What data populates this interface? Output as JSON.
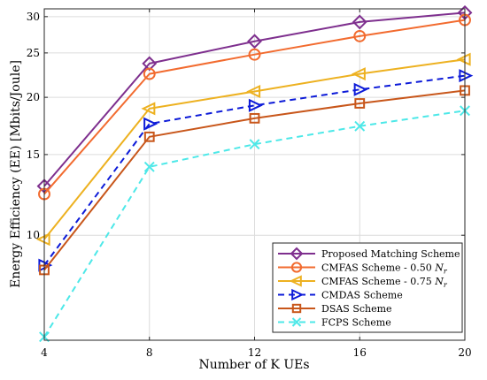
{
  "chart_data": {
    "type": "line",
    "x": [
      4,
      8,
      12,
      16,
      20
    ],
    "xlabel": "Number of K UEs",
    "ylabel": "Energy Efficiency (EE) [Mbits/Joule]",
    "xlim": [
      4,
      20
    ],
    "ylim": [
      5.9,
      31.2
    ],
    "x_ticks": [
      4,
      8,
      12,
      16,
      20
    ],
    "y_ticks": [
      10,
      15,
      20,
      25,
      30
    ],
    "grid": true,
    "legend_position": "bottom-right",
    "series": [
      {
        "name": "Proposed Matching Scheme",
        "values": [
          12.8,
          23.7,
          26.5,
          29.2,
          30.6
        ],
        "color": "#7e2f8e",
        "marker": "diamond",
        "dash": "solid"
      },
      {
        "name": "CMFAS Scheme - 0.50 N_r",
        "values": [
          12.3,
          22.5,
          24.8,
          27.2,
          29.5
        ],
        "color": "#f26b2f",
        "marker": "circle",
        "dash": "solid"
      },
      {
        "name": "CMFAS Scheme - 0.75 N_r",
        "values": [
          9.8,
          18.9,
          20.6,
          22.5,
          24.2
        ],
        "color": "#edb120",
        "marker": "triangle-left",
        "dash": "solid"
      },
      {
        "name": "CMDAS Scheme",
        "values": [
          8.6,
          17.5,
          19.2,
          20.8,
          22.3
        ],
        "color": "#0d1bd8",
        "marker": "triangle-right",
        "dash": "dashed"
      },
      {
        "name": "DSAS Scheme",
        "values": [
          8.4,
          16.4,
          18.0,
          19.4,
          20.7
        ],
        "color": "#c8561a",
        "marker": "square",
        "dash": "solid"
      },
      {
        "name": "FCPS Scheme",
        "values": [
          6.0,
          14.1,
          15.8,
          17.3,
          18.7
        ],
        "color": "#4de8e8",
        "marker": "x",
        "dash": "dashed"
      }
    ]
  }
}
